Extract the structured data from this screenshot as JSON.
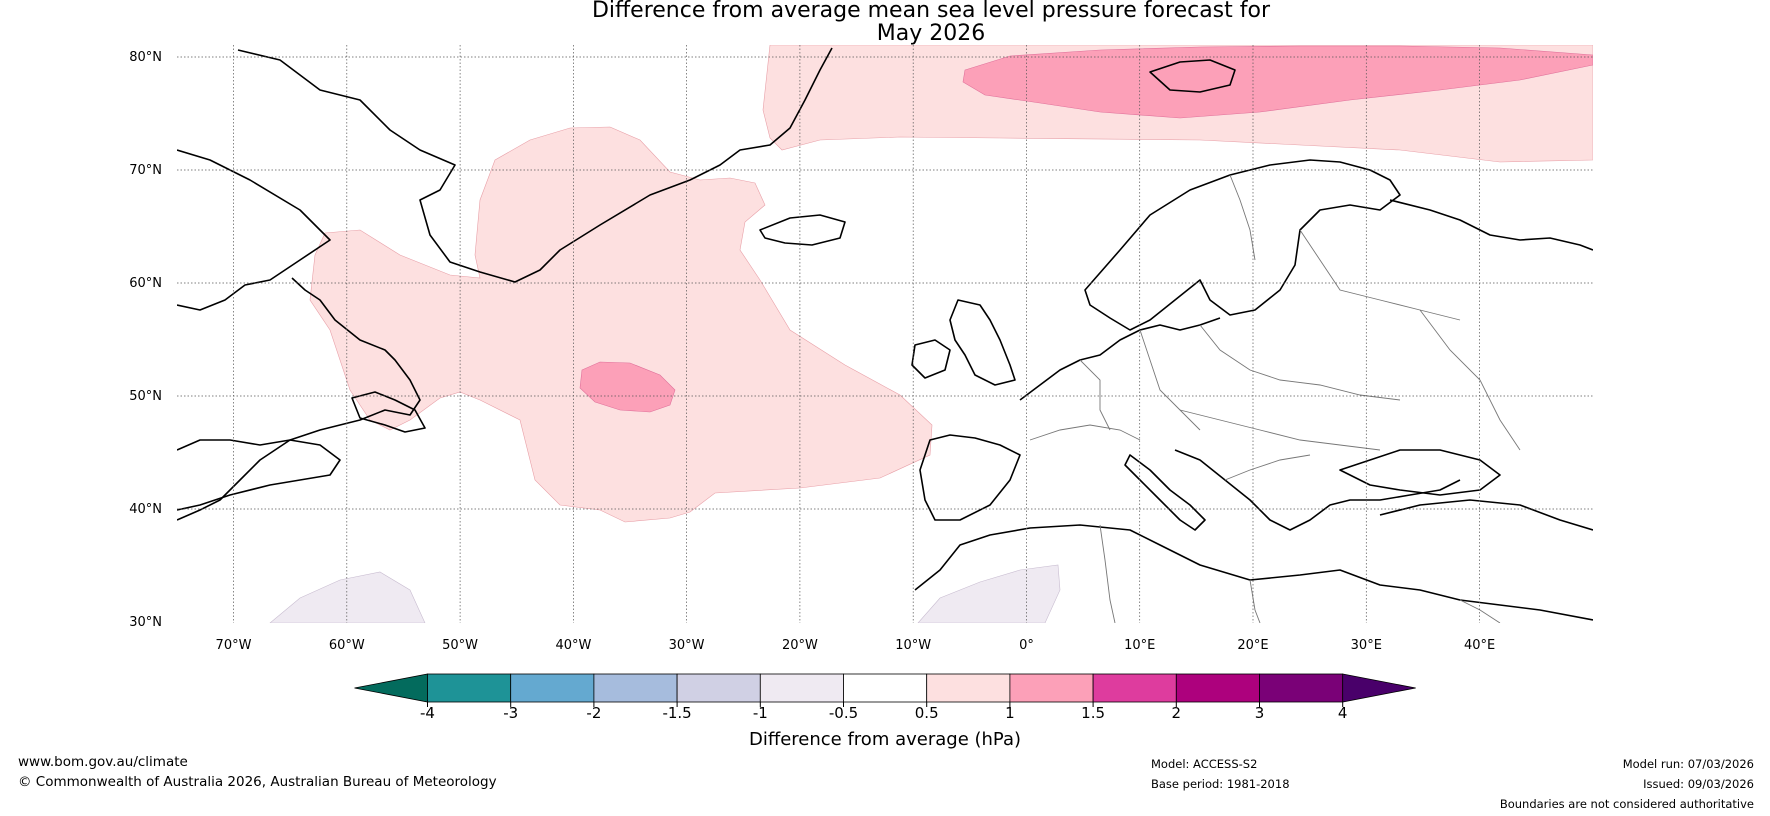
{
  "title": {
    "line1": "Difference from average mean sea level pressure forecast for",
    "line2": "May 2026"
  },
  "map": {
    "lat_labels": [
      "80°N",
      "70°N",
      "60°N",
      "50°N",
      "40°N",
      "30°N"
    ],
    "lon_labels": [
      "70°W",
      "60°W",
      "50°W",
      "40°W",
      "30°W",
      "20°W",
      "10°W",
      "0°",
      "10°E",
      "20°E",
      "30°E",
      "40°E"
    ]
  },
  "legend": {
    "title": "Difference from average (hPa)",
    "tick_labels": [
      "-4",
      "-3",
      "-2",
      "-1.5",
      "-1",
      "-0.5",
      "0.5",
      "1",
      "1.5",
      "2",
      "3",
      "4"
    ],
    "colors": {
      "under": "#036b5d",
      "bins": [
        "#1e9397",
        "#64a9d0",
        "#a6bcdd",
        "#d0d0e4",
        "#efeaf2",
        "#ffffff",
        "#fde0e0",
        "#fca0b8",
        "#de3c9e",
        "#ad017d",
        "#7a0177"
      ],
      "over": "#49006a"
    }
  },
  "footer": {
    "website": "www.bom.gov.au/climate",
    "copyright": "© Commonwealth of Australia 2026, Australian Bureau of Meteorology",
    "model": "Model: ACCESS-S2",
    "base_period": "Base period: 1981-2018",
    "model_run": "Model run: 07/03/2026",
    "issued": "Issued: 09/03/2026",
    "disclaimer": "Boundaries are not considered authoritative"
  }
}
